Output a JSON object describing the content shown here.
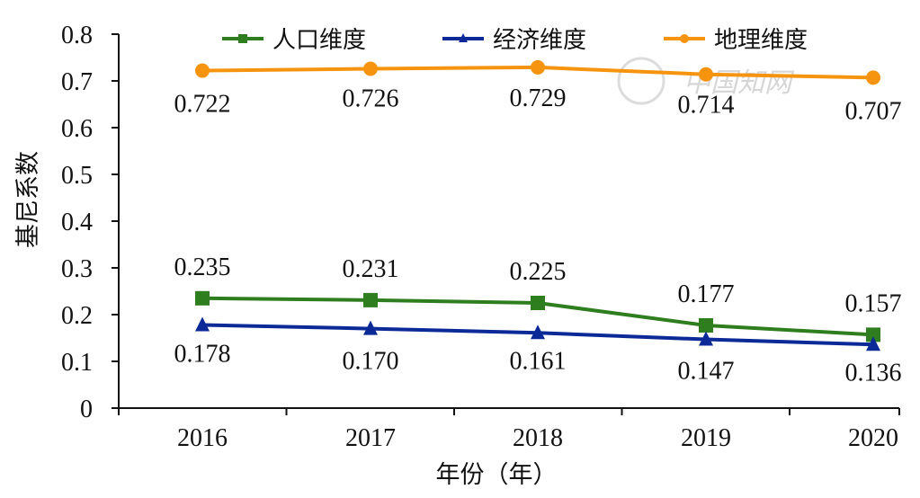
{
  "chart_data": {
    "type": "line",
    "categories": [
      "2016",
      "2017",
      "2018",
      "2019",
      "2020"
    ],
    "series": [
      {
        "name": "人口维度",
        "values": [
          0.235,
          0.231,
          0.225,
          0.177,
          0.157
        ],
        "color": "#2e7d1e",
        "marker": "square"
      },
      {
        "name": "经济维度",
        "values": [
          0.178,
          0.17,
          0.161,
          0.147,
          0.136
        ],
        "color": "#0b2a97",
        "marker": "triangle"
      },
      {
        "name": "地理维度",
        "values": [
          0.722,
          0.726,
          0.729,
          0.714,
          0.707
        ],
        "color": "#f7940f",
        "marker": "circle"
      }
    ],
    "labels": {
      "人口维度": [
        "0.235",
        "0.231",
        "0.225",
        "0.177",
        "0.157"
      ],
      "经济维度": [
        "0.178",
        "0.170",
        "0.161",
        "0.147",
        "0.136"
      ],
      "地理维度": [
        "0.722",
        "0.726",
        "0.729",
        "0.714",
        "0.707"
      ]
    },
    "xlabel": "年份（年）",
    "ylabel": "基尼系数",
    "ylim": [
      0,
      0.8
    ],
    "yticks": [
      "0",
      "0.1",
      "0.2",
      "0.3",
      "0.4",
      "0.5",
      "0.6",
      "0.7",
      "0.8"
    ],
    "grid": false,
    "legend_position": "top"
  },
  "watermark": "中国知网"
}
